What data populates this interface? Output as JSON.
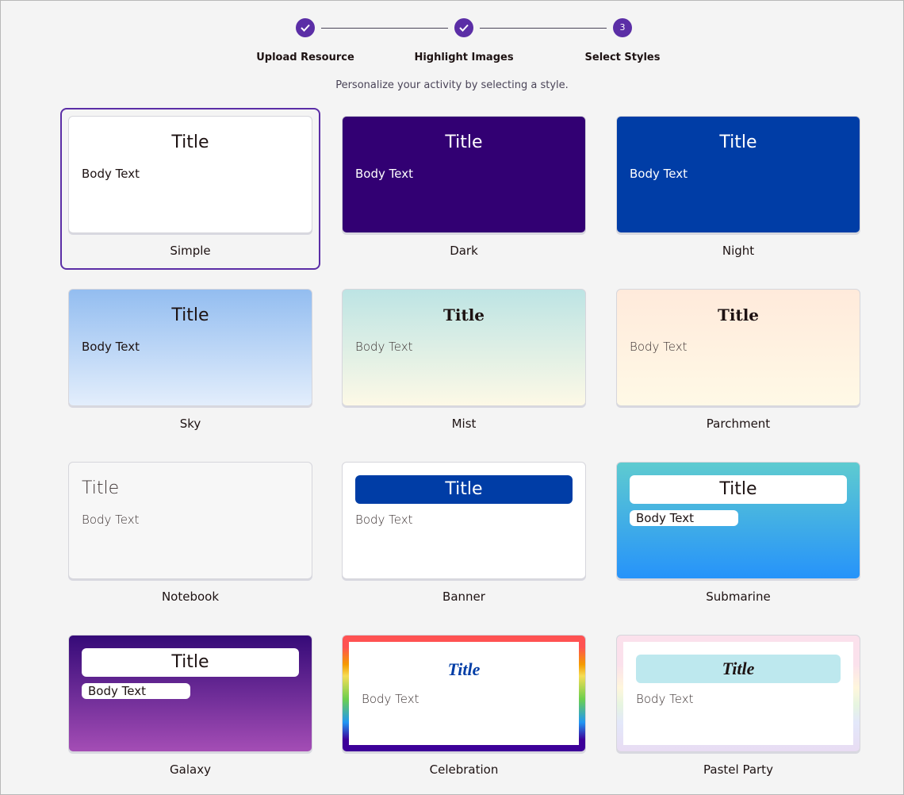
{
  "stepper": {
    "steps": [
      {
        "label": "Upload Resource",
        "status": "complete",
        "icon": "check-icon"
      },
      {
        "label": "Highlight Images",
        "status": "complete",
        "icon": "check-icon"
      },
      {
        "label": "Select Styles",
        "status": "current",
        "number": "3"
      }
    ]
  },
  "subtitle": "Personalize your activity by selecting a style.",
  "accent": "#5b2ea6",
  "preview": {
    "title": "Title",
    "body": "Body Text"
  },
  "styles": [
    {
      "name": "Simple",
      "selected": true
    },
    {
      "name": "Dark"
    },
    {
      "name": "Night"
    },
    {
      "name": "Sky"
    },
    {
      "name": "Mist"
    },
    {
      "name": "Parchment"
    },
    {
      "name": "Notebook"
    },
    {
      "name": "Banner"
    },
    {
      "name": "Submarine"
    },
    {
      "name": "Galaxy"
    },
    {
      "name": "Celebration"
    },
    {
      "name": "Pastel Party"
    }
  ]
}
